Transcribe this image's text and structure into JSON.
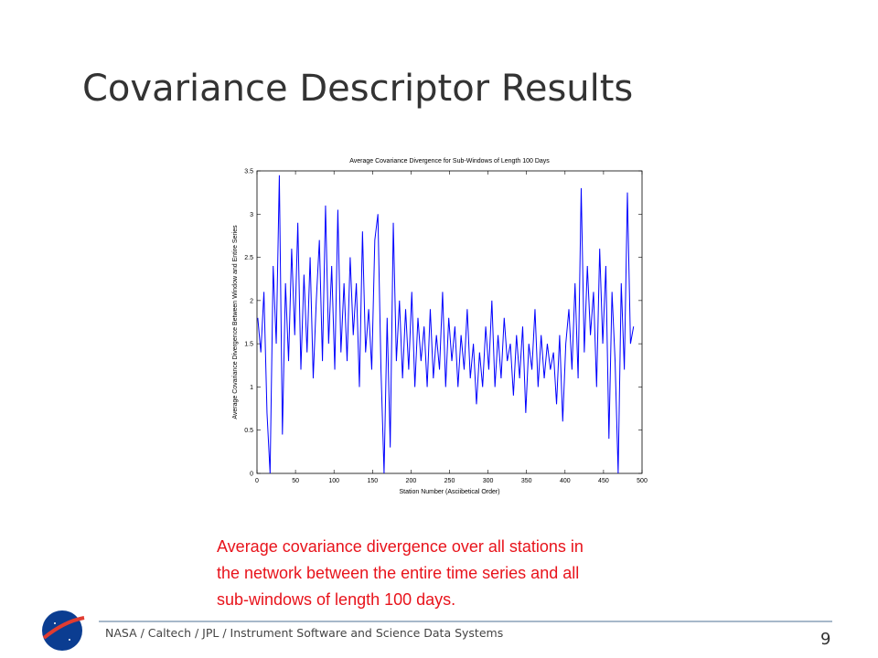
{
  "slide_title": "Covariance Descriptor Results",
  "caption": [
    "Average covariance divergence over all stations in",
    "the network between the entire time series and all",
    "sub-windows of length 100 days."
  ],
  "footer": "NASA / Caltech / JPL / Instrument Software and Science Data Systems",
  "page_number": "9",
  "chart_data": {
    "type": "line",
    "title": "Average Covariance Divergence for Sub-Windows of Length 100 Days",
    "x_label": "Station Number (Asciibetical Order)",
    "y_label": "Average Covariance Divergence Between Window and Entire Series",
    "color": "#0000ff",
    "xlim": [
      0,
      500
    ],
    "xticks": [
      0,
      50,
      100,
      150,
      200,
      250,
      300,
      350,
      400,
      450,
      500
    ],
    "ylim": [
      0,
      3.5
    ],
    "yticks": [
      0,
      0.5,
      1,
      1.5,
      2,
      2.5,
      3,
      3.5
    ],
    "x": [
      1,
      5,
      9,
      13,
      17,
      21,
      25,
      29,
      33,
      37,
      41,
      45,
      49,
      53,
      57,
      61,
      65,
      69,
      73,
      77,
      81,
      85,
      89,
      93,
      97,
      101,
      105,
      109,
      113,
      117,
      121,
      125,
      129,
      133,
      137,
      141,
      145,
      149,
      153,
      157,
      161,
      165,
      169,
      173,
      177,
      181,
      185,
      189,
      193,
      197,
      201,
      205,
      209,
      213,
      217,
      221,
      225,
      229,
      233,
      237,
      241,
      245,
      249,
      253,
      257,
      261,
      265,
      269,
      273,
      277,
      281,
      285,
      289,
      293,
      297,
      301,
      305,
      309,
      313,
      317,
      321,
      325,
      329,
      333,
      337,
      341,
      345,
      349,
      353,
      357,
      361,
      365,
      369,
      373,
      377,
      381,
      385,
      389,
      393,
      397,
      401,
      405,
      409,
      413,
      417,
      421,
      425,
      429,
      433,
      437,
      441,
      445,
      449,
      453,
      457,
      461,
      465,
      469,
      473,
      477,
      481,
      485,
      489
    ],
    "values": [
      1.8,
      1.4,
      2.1,
      0.7,
      0.0,
      2.4,
      1.5,
      3.45,
      0.45,
      2.2,
      1.3,
      2.6,
      1.6,
      2.9,
      1.2,
      2.3,
      1.4,
      2.5,
      1.1,
      2.0,
      2.7,
      1.3,
      3.1,
      1.5,
      2.4,
      1.2,
      3.05,
      1.4,
      2.2,
      1.3,
      2.5,
      1.6,
      2.2,
      1.0,
      2.8,
      1.4,
      1.9,
      1.2,
      2.7,
      3.0,
      1.2,
      0.0,
      1.8,
      0.3,
      2.9,
      1.3,
      2.0,
      1.1,
      1.9,
      1.2,
      2.1,
      1.0,
      1.8,
      1.3,
      1.7,
      1.0,
      1.9,
      1.1,
      1.6,
      1.2,
      2.1,
      1.0,
      1.8,
      1.3,
      1.7,
      1.0,
      1.6,
      1.2,
      1.9,
      1.1,
      1.5,
      0.8,
      1.4,
      1.0,
      1.7,
      1.2,
      2.0,
      1.0,
      1.6,
      1.1,
      1.8,
      1.3,
      1.5,
      0.9,
      1.6,
      1.1,
      1.7,
      0.7,
      1.5,
      1.2,
      1.9,
      1.0,
      1.6,
      1.1,
      1.5,
      1.2,
      1.4,
      0.8,
      1.6,
      0.6,
      1.5,
      1.9,
      1.2,
      2.2,
      1.1,
      3.3,
      1.4,
      2.4,
      1.6,
      2.1,
      1.0,
      2.6,
      1.5,
      2.4,
      0.4,
      2.1,
      1.3,
      0.0,
      2.2,
      1.2,
      3.25,
      1.5,
      1.7
    ]
  }
}
